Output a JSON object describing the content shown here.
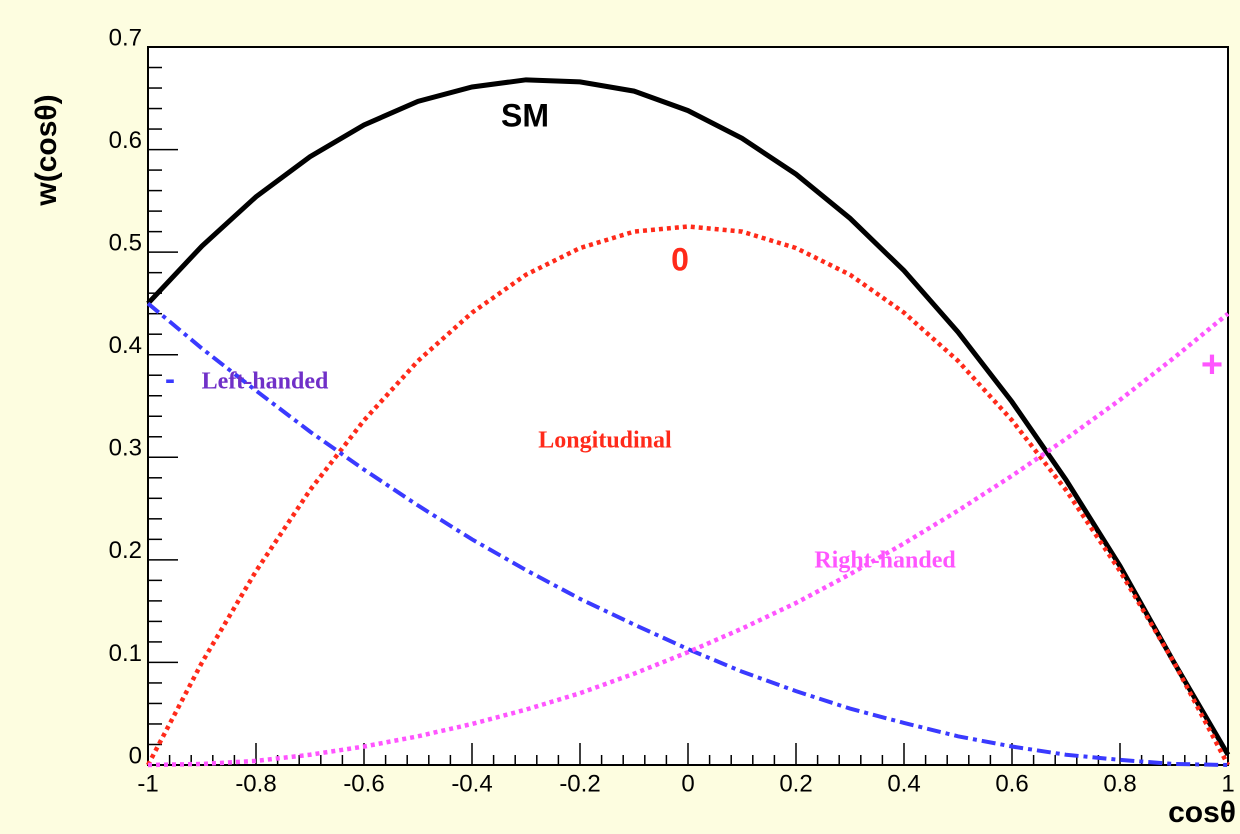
{
  "chart_data": {
    "type": "line",
    "y_label": "w(cosθ)",
    "x_label": "cosθ",
    "x": [
      -1,
      -0.9,
      -0.8,
      -0.7,
      -0.6,
      -0.5,
      -0.4,
      -0.3,
      -0.2,
      -0.1,
      0,
      0.1,
      0.2,
      0.3,
      0.4,
      0.5,
      0.6,
      0.7,
      0.8,
      0.9,
      1
    ],
    "series": [
      {
        "name": "SM",
        "color": "#000000",
        "style": "solid",
        "values": [
          0.45,
          0.506,
          0.554,
          0.593,
          0.624,
          0.647,
          0.661,
          0.668,
          0.666,
          0.657,
          0.638,
          0.611,
          0.576,
          0.533,
          0.482,
          0.422,
          0.354,
          0.278,
          0.194,
          0.1,
          0.01
        ]
      },
      {
        "name": "Longitudinal",
        "color": "#ff2a1a",
        "style": "dotted",
        "values": [
          0,
          0.1,
          0.189,
          0.268,
          0.336,
          0.394,
          0.441,
          0.478,
          0.504,
          0.52,
          0.525,
          0.52,
          0.504,
          0.478,
          0.441,
          0.394,
          0.336,
          0.268,
          0.189,
          0.1,
          0
        ]
      },
      {
        "name": "Left-handed",
        "color": "#3a3aff",
        "style": "dashdot",
        "values": [
          0.45,
          0.406,
          0.365,
          0.325,
          0.288,
          0.253,
          0.22,
          0.19,
          0.162,
          0.137,
          0.113,
          0.091,
          0.072,
          0.055,
          0.041,
          0.028,
          0.018,
          0.01,
          0.005,
          0.001,
          0
        ]
      },
      {
        "name": "Right-handed",
        "color": "#ff55ff",
        "style": "dotted",
        "values": [
          0,
          0.001,
          0.004,
          0.01,
          0.018,
          0.028,
          0.04,
          0.054,
          0.07,
          0.089,
          0.11,
          0.133,
          0.158,
          0.186,
          0.216,
          0.248,
          0.282,
          0.318,
          0.356,
          0.397,
          0.44
        ]
      }
    ],
    "annotations": [
      "0",
      "-",
      "+"
    ],
    "xlim": [
      -1,
      1
    ],
    "xticks": [
      -1,
      -0.8,
      -0.6,
      -0.4,
      -0.2,
      0,
      0.2,
      0.4,
      0.6,
      0.8,
      1
    ],
    "ylim": [
      0,
      0.7
    ],
    "yticks": [
      0,
      0.1,
      0.2,
      0.3,
      0.4,
      0.5,
      0.6,
      0.7
    ],
    "grid": false
  }
}
